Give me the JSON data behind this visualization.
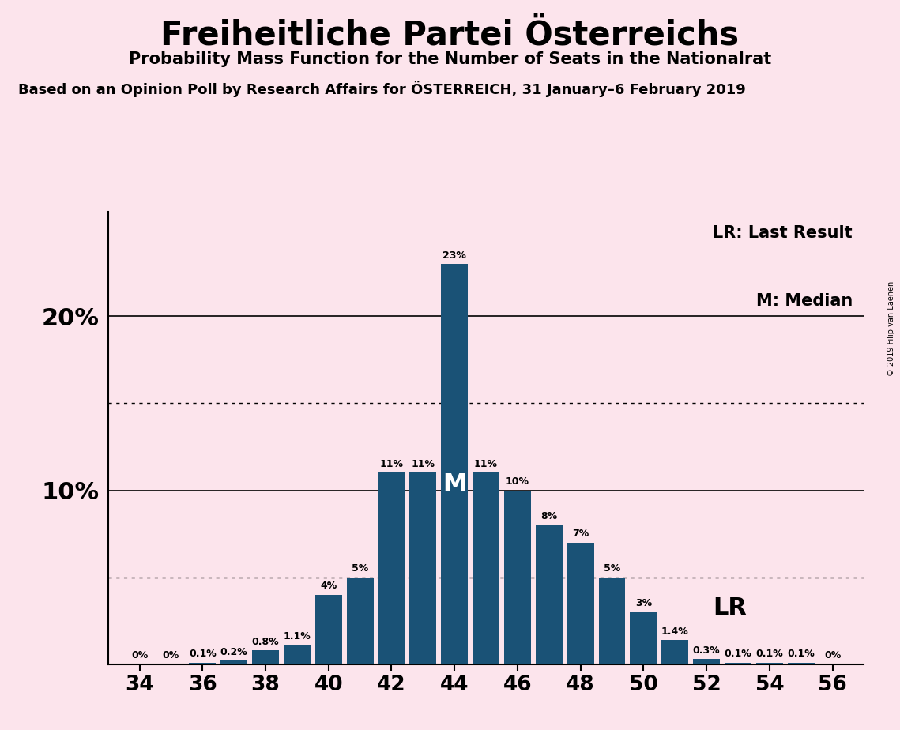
{
  "title": "Freiheitliche Partei Österreichs",
  "subtitle": "Probability Mass Function for the Number of Seats in the Nationalrat",
  "source_line": "Based on an Opinion Poll by Research Affairs for ÖSTERREICH, 31 January–6 February 2019",
  "copyright": "© 2019 Filip van Laenen",
  "legend_lr": "LR: Last Result",
  "legend_m": "M: Median",
  "background_color": "#fce4ec",
  "bar_color": "#1a5276",
  "seats": [
    34,
    35,
    36,
    37,
    38,
    39,
    40,
    41,
    42,
    43,
    44,
    45,
    46,
    47,
    48,
    49,
    50,
    51,
    52,
    53,
    54,
    55,
    56
  ],
  "probabilities": [
    0.0,
    0.0,
    0.1,
    0.2,
    0.8,
    1.1,
    4.0,
    5.0,
    11.0,
    11.0,
    23.0,
    11.0,
    10.0,
    8.0,
    7.0,
    5.0,
    3.0,
    1.4,
    0.3,
    0.1,
    0.1,
    0.1,
    0.0
  ],
  "labels": [
    "0%",
    "0%",
    "0.1%",
    "0.2%",
    "0.8%",
    "1.1%",
    "4%",
    "5%",
    "11%",
    "11%",
    "23%",
    "11%",
    "10%",
    "8%",
    "7%",
    "5%",
    "3%",
    "1.4%",
    "0.3%",
    "0.1%",
    "0.1%",
    "0.1%",
    "0%"
  ],
  "median_seat": 44,
  "lr_seat": 51,
  "ymax": 26,
  "dotted_lines": [
    5.0,
    15.0
  ],
  "solid_lines": [
    10.0,
    20.0
  ],
  "xlim_left": 33,
  "xlim_right": 57,
  "xlabel_seats": [
    34,
    36,
    38,
    40,
    42,
    44,
    46,
    48,
    50,
    52,
    54,
    56
  ],
  "label_fontsize": 9,
  "ytick_fontsize": 22,
  "xtick_fontsize": 19,
  "title_fontsize": 30,
  "subtitle_fontsize": 15,
  "source_fontsize": 13,
  "legend_fontsize": 15,
  "m_fontsize": 22,
  "lr_annotation_fontsize": 22
}
